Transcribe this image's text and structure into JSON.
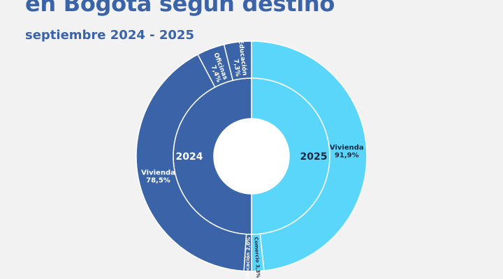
{
  "header": {
    "title": "en Bogotá según destino",
    "subtitle": "septiembre 2024 - 2025"
  },
  "colors": {
    "year_2025": "#5bd6fb",
    "year_2024": "#3a64a7",
    "center": "#ffffff"
  },
  "chart_data": {
    "type": "pie",
    "subtype": "sunburst",
    "rings": [
      {
        "level": "inner",
        "categories": [
          "2025",
          "2024"
        ],
        "values": [
          50,
          50
        ]
      },
      {
        "level": "outer",
        "segments": [
          {
            "year": "2025",
            "name": "Vivienda",
            "value_label": "91,9%",
            "value": 91.9
          },
          {
            "year": "2025",
            "name": "Comercio",
            "value_label": "3,3%",
            "value": 3.3
          },
          {
            "year": "2024",
            "name": "Educación",
            "value_label": "2,0%",
            "value": 2.0
          },
          {
            "year": "2024",
            "name": "Vivienda",
            "value_label": "78,5%",
            "value": 78.5
          },
          {
            "year": "2024",
            "name": "Oficinas",
            "value_label": "7,4%",
            "value": 7.4
          },
          {
            "year": "2024",
            "name": "Educación",
            "value_label": "7,3%",
            "value": 7.3
          }
        ]
      }
    ]
  }
}
